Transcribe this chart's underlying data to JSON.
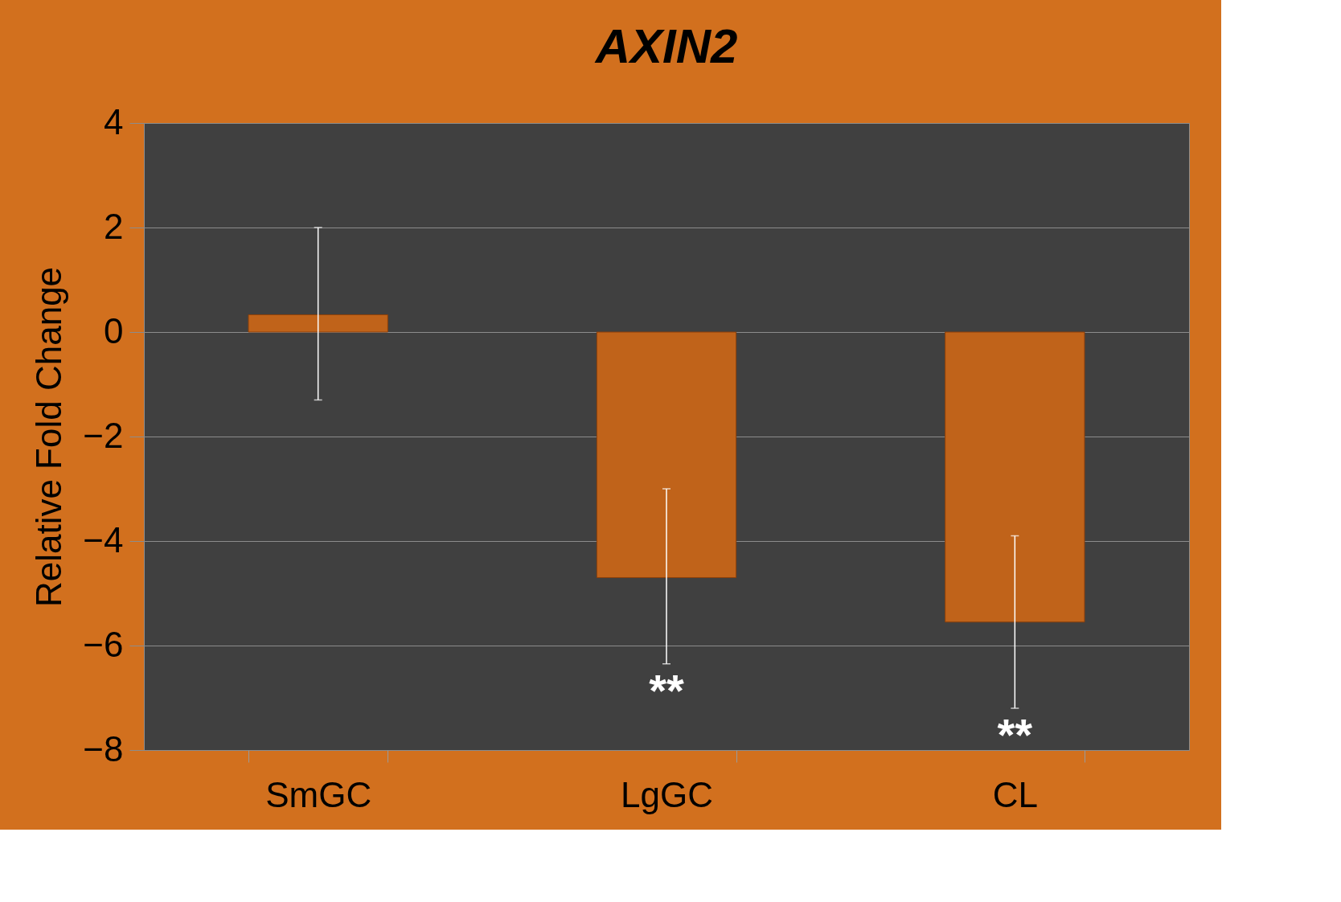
{
  "chart_data": {
    "type": "bar",
    "title": "AXIN2",
    "ylabel": "Relative Fold Change",
    "categories": [
      "SmGC",
      "LgGC",
      "CL"
    ],
    "values": [
      0.33,
      -4.7,
      -5.55
    ],
    "errors": [
      [
        -1.3,
        2.0
      ],
      [
        -3.0,
        -6.35
      ],
      [
        -3.9,
        -7.2
      ]
    ],
    "color": "#c0631a",
    "ylim": [
      -8,
      4
    ],
    "yticks": [
      -8,
      -6,
      -4,
      -2,
      0,
      2,
      4
    ],
    "grid": "y",
    "annotations": [
      "**",
      "**"
    ]
  }
}
